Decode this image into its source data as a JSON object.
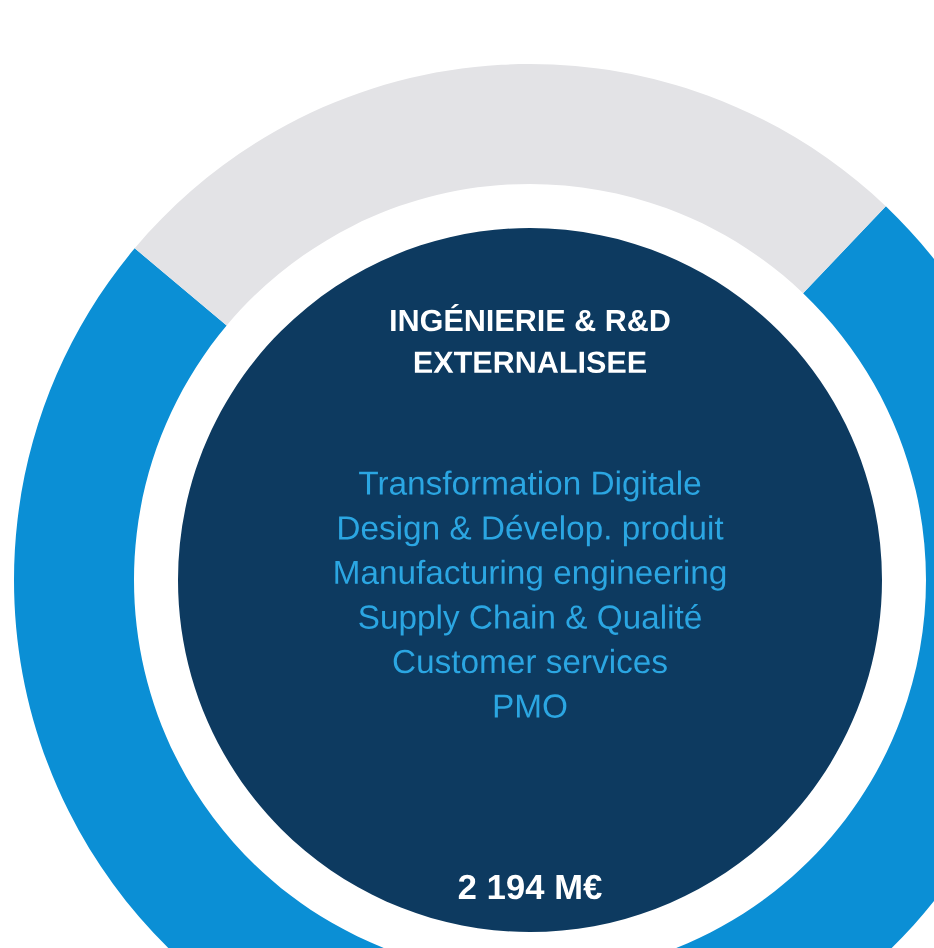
{
  "chart_data": {
    "type": "donut",
    "title": "INGÉNIERIE & R&D\nEXTERNALISEE",
    "categories": [
      null,
      null
    ],
    "values": [
      74,
      26
    ],
    "colors": [
      "#0b8fd5",
      "#e3e3e6"
    ],
    "annotations": [
      "Transformation Digitale",
      "Design & Dévelop. produit",
      "Manufacturing engineering",
      "Supply Chain & Qualité",
      "Customer services",
      "PMO",
      "2 194 M€"
    ]
  }
}
